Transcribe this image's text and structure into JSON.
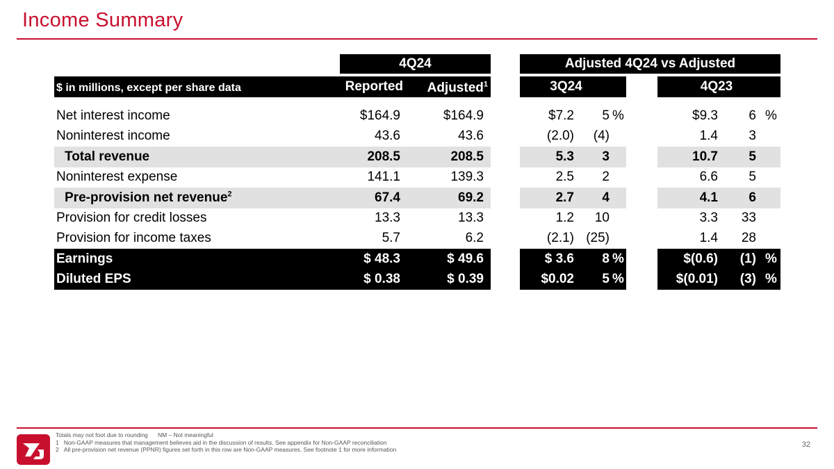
{
  "page": {
    "title": "Income Summary",
    "page_number": "32",
    "brand_color": "#c8102e"
  },
  "table": {
    "unit_label": "$ in millions, except per share data",
    "group_4q24": "4Q24",
    "group_adjusted": "Adjusted 4Q24 vs Adjusted",
    "col_reported": "Reported",
    "col_adjusted": "Adjusted",
    "col_adjusted_sup": "1",
    "col_3q24": "3Q24",
    "col_4q23": "4Q23",
    "rows": [
      {
        "label": "Net interest income",
        "sup": "",
        "reported": "$164.9",
        "adjusted": "$164.9",
        "q3_amt": "$7.2",
        "q3_pct": "5",
        "q3_unit": "%",
        "q4_amt": "$9.3",
        "q4_pct": "6",
        "q4_unit": "%"
      },
      {
        "label": "Noninterest income",
        "sup": "",
        "reported": "43.6",
        "adjusted": "43.6",
        "q3_amt": "(2.0)",
        "q3_pct": "(4)",
        "q3_unit": "",
        "q4_amt": "1.4",
        "q4_pct": "3",
        "q4_unit": ""
      },
      {
        "label": "Total revenue",
        "sup": "",
        "reported": "208.5",
        "adjusted": "208.5",
        "q3_amt": "5.3",
        "q3_pct": "3",
        "q3_unit": "",
        "q4_amt": "10.7",
        "q4_pct": "5",
        "q4_unit": ""
      },
      {
        "label": "Noninterest expense",
        "sup": "",
        "reported": "141.1",
        "adjusted": "139.3",
        "q3_amt": "2.5",
        "q3_pct": "2",
        "q3_unit": "",
        "q4_amt": "6.6",
        "q4_pct": "5",
        "q4_unit": ""
      },
      {
        "label": "Pre-provision net revenue",
        "sup": "2",
        "reported": "67.4",
        "adjusted": "69.2",
        "q3_amt": "2.7",
        "q3_pct": "4",
        "q3_unit": "",
        "q4_amt": "4.1",
        "q4_pct": "6",
        "q4_unit": ""
      },
      {
        "label": "Provision for credit losses",
        "sup": "",
        "reported": "13.3",
        "adjusted": "13.3",
        "q3_amt": "1.2",
        "q3_pct": "10",
        "q3_unit": "",
        "q4_amt": "3.3",
        "q4_pct": "33",
        "q4_unit": ""
      },
      {
        "label": "Provision for income taxes",
        "sup": "",
        "reported": "5.7",
        "adjusted": "6.2",
        "q3_amt": "(2.1)",
        "q3_pct": "(25)",
        "q3_unit": "",
        "q4_amt": "1.4",
        "q4_pct": "28",
        "q4_unit": ""
      },
      {
        "label": "Earnings",
        "sup": "",
        "reported": "$ 48.3",
        "adjusted": "$ 49.6",
        "q3_amt": "$ 3.6",
        "q3_pct": "8",
        "q3_unit": "%",
        "q4_amt": "$(0.6)",
        "q4_pct": "(1)",
        "q4_unit": "%"
      },
      {
        "label": "Diluted EPS",
        "sup": "",
        "reported": "$ 0.38",
        "adjusted": "$ 0.39",
        "q3_amt": "$0.02",
        "q3_pct": "5",
        "q3_unit": "%",
        "q4_amt": "$(0.01)",
        "q4_pct": "(3)",
        "q4_unit": "%"
      }
    ]
  },
  "footnotes": {
    "line0_a": "Totals may not foot due to rounding",
    "line0_b": "NM – Not meaningful",
    "line1_num": "1",
    "line1_text": "Non-GAAP measures that management believes aid in the discussion of results. See appendix for Non-GAAP reconciliation",
    "line2_num": "2",
    "line2_text": "All pre-provision net revenue (PPNR) figures set forth in this row are Non-GAAP measures. See footnote 1 for more information"
  }
}
